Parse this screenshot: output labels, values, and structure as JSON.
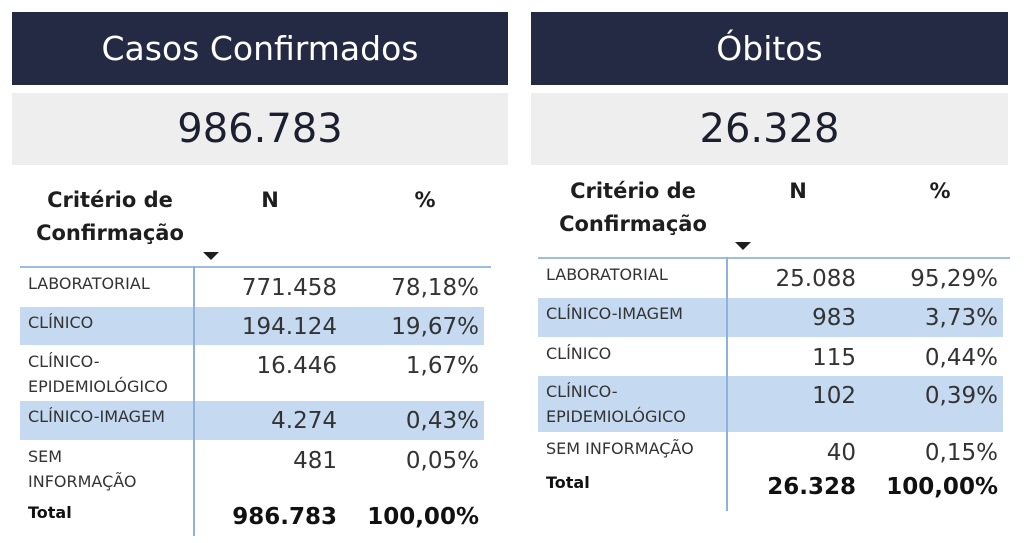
{
  "casos": {
    "title": "Casos Confirmados",
    "value": "986.783",
    "headers": {
      "criterio": "Critério de Confirmação",
      "n": "N",
      "pct": "%"
    },
    "rows": [
      {
        "label": "LABORATORIAL",
        "n": "771.458",
        "pct": "78,18%"
      },
      {
        "label": "CLÍNICO",
        "n": "194.124",
        "pct": "19,67%"
      },
      {
        "label": "CLÍNICO-\nEPIDEMIOLÓGICO",
        "n": "16.446",
        "pct": "1,67%"
      },
      {
        "label": "CLÍNICO-IMAGEM",
        "n": "4.274",
        "pct": "0,43%"
      },
      {
        "label": "SEM\nINFORMAÇÃO",
        "n": "481",
        "pct": "0,05%"
      }
    ],
    "total": {
      "label": "Total",
      "n": "986.783",
      "pct": "100,00%"
    }
  },
  "obitos": {
    "title": "Óbitos",
    "value": "26.328",
    "headers": {
      "criterio": "Critério de Confirmação",
      "n": "N",
      "pct": "%"
    },
    "rows": [
      {
        "label": "LABORATORIAL",
        "n": "25.088",
        "pct": "95,29%"
      },
      {
        "label": "CLÍNICO-IMAGEM",
        "n": "983",
        "pct": "3,73%"
      },
      {
        "label": "CLÍNICO",
        "n": "115",
        "pct": "0,44%"
      },
      {
        "label": "CLÍNICO-\nEPIDEMIOLÓGICO",
        "n": "102",
        "pct": "0,39%"
      },
      {
        "label": "SEM INFORMAÇÃO",
        "n": "40",
        "pct": "0,15%"
      }
    ],
    "total": {
      "label": "Total",
      "n": "26.328",
      "pct": "100,00%"
    }
  },
  "colors": {
    "header_bg": "#252a44",
    "highlight": "#c5d9f1",
    "value_bg": "#eeeeee"
  }
}
